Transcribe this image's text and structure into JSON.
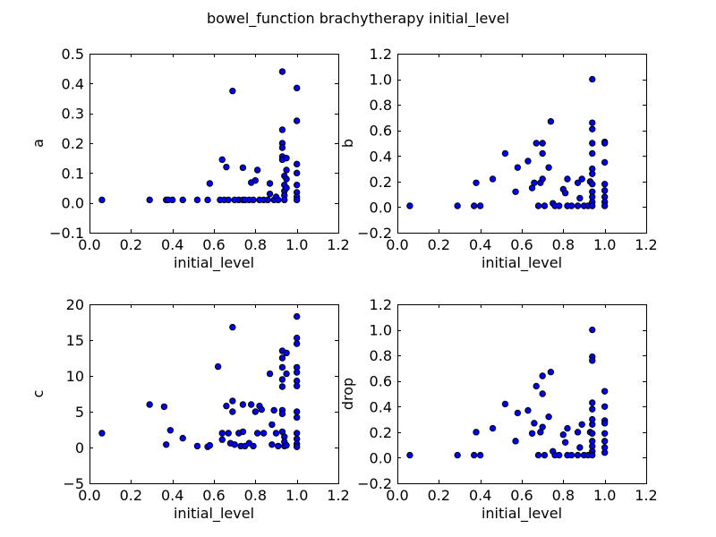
{
  "figure": {
    "title": "bowel_function brachytherapy initial_level"
  },
  "chart_data": [
    {
      "type": "scatter",
      "id": "a",
      "xlabel": "initial_level",
      "ylabel": "a",
      "xlim": [
        0.0,
        1.2
      ],
      "ylim": [
        -0.1,
        0.5
      ],
      "xticks": [
        0.0,
        0.2,
        0.4,
        0.6,
        0.8,
        1.0,
        1.2
      ],
      "yticks": [
        -0.1,
        0.0,
        0.1,
        0.2,
        0.3,
        0.4,
        0.5
      ],
      "xtick_labels": [
        "0.0",
        "0.2",
        "0.4",
        "0.6",
        "0.8",
        "1.0",
        "1.2"
      ],
      "ytick_labels": [
        "−0.1",
        "0.0",
        "0.1",
        "0.2",
        "0.3",
        "0.4",
        "0.5"
      ],
      "points": [
        [
          0.06,
          0.01
        ],
        [
          0.29,
          0.01
        ],
        [
          0.37,
          0.01
        ],
        [
          0.38,
          0.01
        ],
        [
          0.4,
          0.01
        ],
        [
          0.45,
          0.01
        ],
        [
          0.52,
          0.01
        ],
        [
          0.57,
          0.01
        ],
        [
          0.58,
          0.065
        ],
        [
          0.63,
          0.01
        ],
        [
          0.64,
          0.145
        ],
        [
          0.65,
          0.01
        ],
        [
          0.66,
          0.12
        ],
        [
          0.67,
          0.01
        ],
        [
          0.69,
          0.375
        ],
        [
          0.7,
          0.01
        ],
        [
          0.72,
          0.01
        ],
        [
          0.74,
          0.01
        ],
        [
          0.74,
          0.118
        ],
        [
          0.75,
          0.01
        ],
        [
          0.77,
          0.01
        ],
        [
          0.78,
          0.068
        ],
        [
          0.79,
          0.01
        ],
        [
          0.8,
          0.075
        ],
        [
          0.81,
          0.11
        ],
        [
          0.82,
          0.01
        ],
        [
          0.84,
          0.01
        ],
        [
          0.86,
          0.01
        ],
        [
          0.87,
          0.065
        ],
        [
          0.87,
          0.03
        ],
        [
          0.89,
          0.01
        ],
        [
          0.9,
          0.02
        ],
        [
          0.91,
          0.01
        ],
        [
          0.93,
          0.44
        ],
        [
          0.93,
          0.245
        ],
        [
          0.93,
          0.2
        ],
        [
          0.93,
          0.185
        ],
        [
          0.93,
          0.155
        ],
        [
          0.93,
          0.145
        ],
        [
          0.94,
          0.09
        ],
        [
          0.94,
          0.06
        ],
        [
          0.94,
          0.04
        ],
        [
          0.94,
          0.025
        ],
        [
          0.94,
          0.01
        ],
        [
          0.95,
          0.15
        ],
        [
          0.95,
          0.11
        ],
        [
          0.95,
          0.08
        ],
        [
          0.95,
          0.05
        ],
        [
          1.0,
          0.385
        ],
        [
          1.0,
          0.275
        ],
        [
          1.0,
          0.13
        ],
        [
          1.0,
          0.1
        ],
        [
          1.0,
          0.06
        ],
        [
          1.0,
          0.035
        ],
        [
          1.0,
          0.02
        ],
        [
          1.0,
          0.01
        ]
      ]
    },
    {
      "type": "scatter",
      "id": "b",
      "xlabel": "initial_level",
      "ylabel": "b",
      "xlim": [
        0.0,
        1.2
      ],
      "ylim": [
        -0.2,
        1.2
      ],
      "xticks": [
        0.0,
        0.2,
        0.4,
        0.6,
        0.8,
        1.0,
        1.2
      ],
      "yticks": [
        -0.2,
        0.0,
        0.2,
        0.4,
        0.6,
        0.8,
        1.0,
        1.2
      ],
      "xtick_labels": [
        "0.0",
        "0.2",
        "0.4",
        "0.6",
        "0.8",
        "1.0",
        "1.2"
      ],
      "ytick_labels": [
        "−0.2",
        "0.0",
        "0.2",
        "0.4",
        "0.6",
        "0.8",
        "1.0",
        "1.2"
      ],
      "points": [
        [
          0.06,
          0.01
        ],
        [
          0.29,
          0.01
        ],
        [
          0.37,
          0.01
        ],
        [
          0.38,
          0.19
        ],
        [
          0.4,
          0.01
        ],
        [
          0.46,
          0.22
        ],
        [
          0.52,
          0.42
        ],
        [
          0.57,
          0.12
        ],
        [
          0.58,
          0.31
        ],
        [
          0.63,
          0.36
        ],
        [
          0.65,
          0.15
        ],
        [
          0.66,
          0.19
        ],
        [
          0.67,
          0.5
        ],
        [
          0.68,
          0.01
        ],
        [
          0.69,
          0.19
        ],
        [
          0.7,
          0.5
        ],
        [
          0.7,
          0.42
        ],
        [
          0.7,
          0.22
        ],
        [
          0.71,
          0.01
        ],
        [
          0.73,
          0.31
        ],
        [
          0.74,
          0.67
        ],
        [
          0.75,
          0.03
        ],
        [
          0.76,
          0.01
        ],
        [
          0.78,
          0.01
        ],
        [
          0.8,
          0.14
        ],
        [
          0.81,
          0.11
        ],
        [
          0.82,
          0.22
        ],
        [
          0.82,
          0.01
        ],
        [
          0.84,
          0.01
        ],
        [
          0.87,
          0.01
        ],
        [
          0.87,
          0.19
        ],
        [
          0.88,
          0.07
        ],
        [
          0.89,
          0.22
        ],
        [
          0.9,
          0.01
        ],
        [
          0.92,
          0.01
        ],
        [
          0.93,
          0.2
        ],
        [
          0.94,
          1.0
        ],
        [
          0.94,
          0.66
        ],
        [
          0.94,
          0.61
        ],
        [
          0.94,
          0.5
        ],
        [
          0.94,
          0.42
        ],
        [
          0.94,
          0.3
        ],
        [
          0.94,
          0.26
        ],
        [
          0.94,
          0.18
        ],
        [
          0.94,
          0.12
        ],
        [
          0.94,
          0.08
        ],
        [
          0.94,
          0.04
        ],
        [
          0.94,
          0.01
        ],
        [
          1.0,
          0.51
        ],
        [
          1.0,
          0.5
        ],
        [
          1.0,
          0.35
        ],
        [
          1.0,
          0.18
        ],
        [
          1.0,
          0.13
        ],
        [
          1.0,
          0.08
        ],
        [
          1.0,
          0.04
        ],
        [
          1.0,
          0.01
        ]
      ]
    },
    {
      "type": "scatter",
      "id": "c",
      "xlabel": "initial_level",
      "ylabel": "c",
      "xlim": [
        0.0,
        1.2
      ],
      "ylim": [
        -5,
        20
      ],
      "xticks": [
        0.0,
        0.2,
        0.4,
        0.6,
        0.8,
        1.0,
        1.2
      ],
      "yticks": [
        -5,
        0,
        5,
        10,
        15,
        20
      ],
      "xtick_labels": [
        "0.0",
        "0.2",
        "0.4",
        "0.6",
        "0.8",
        "1.0",
        "1.2"
      ],
      "ytick_labels": [
        "−5",
        "0",
        "5",
        "10",
        "15",
        "20"
      ],
      "points": [
        [
          0.06,
          2.0
        ],
        [
          0.29,
          6.0
        ],
        [
          0.36,
          5.7
        ],
        [
          0.37,
          0.4
        ],
        [
          0.39,
          2.4
        ],
        [
          0.45,
          1.3
        ],
        [
          0.52,
          0.2
        ],
        [
          0.57,
          0.1
        ],
        [
          0.58,
          0.3
        ],
        [
          0.62,
          11.3
        ],
        [
          0.64,
          2.0
        ],
        [
          0.64,
          1.1
        ],
        [
          0.66,
          5.8
        ],
        [
          0.67,
          2.0
        ],
        [
          0.68,
          0.6
        ],
        [
          0.69,
          16.8
        ],
        [
          0.69,
          6.5
        ],
        [
          0.69,
          5.0
        ],
        [
          0.7,
          0.4
        ],
        [
          0.72,
          2.0
        ],
        [
          0.73,
          0.2
        ],
        [
          0.74,
          6.0
        ],
        [
          0.74,
          2.2
        ],
        [
          0.75,
          0.2
        ],
        [
          0.77,
          0.6
        ],
        [
          0.78,
          6.0
        ],
        [
          0.79,
          0.2
        ],
        [
          0.8,
          5.0
        ],
        [
          0.81,
          2.0
        ],
        [
          0.82,
          5.8
        ],
        [
          0.83,
          5.3
        ],
        [
          0.84,
          2.0
        ],
        [
          0.87,
          10.3
        ],
        [
          0.88,
          3.2
        ],
        [
          0.88,
          0.4
        ],
        [
          0.89,
          5.2
        ],
        [
          0.9,
          2.0
        ],
        [
          0.91,
          0.2
        ],
        [
          0.93,
          13.5
        ],
        [
          0.93,
          12.5
        ],
        [
          0.93,
          11.2
        ],
        [
          0.93,
          9.5
        ],
        [
          0.93,
          8.5
        ],
        [
          0.93,
          5.2
        ],
        [
          0.93,
          4.7
        ],
        [
          0.93,
          2.2
        ],
        [
          0.94,
          1.5
        ],
        [
          0.94,
          0.8
        ],
        [
          0.94,
          0.2
        ],
        [
          0.95,
          13.2
        ],
        [
          0.95,
          10.3
        ],
        [
          0.95,
          0.3
        ],
        [
          1.0,
          18.3
        ],
        [
          1.0,
          15.3
        ],
        [
          1.0,
          14.5
        ],
        [
          1.0,
          11.2
        ],
        [
          1.0,
          10.5
        ],
        [
          1.0,
          9.3
        ],
        [
          1.0,
          8.6
        ],
        [
          1.0,
          5.0
        ],
        [
          1.0,
          4.2
        ],
        [
          1.0,
          2.0
        ],
        [
          1.0,
          1.2
        ],
        [
          1.0,
          0.5
        ],
        [
          1.0,
          0.1
        ]
      ]
    },
    {
      "type": "scatter",
      "id": "drop",
      "xlabel": "initial_level",
      "ylabel": "drop",
      "xlim": [
        0.0,
        1.2
      ],
      "ylim": [
        -0.2,
        1.2
      ],
      "xticks": [
        0.0,
        0.2,
        0.4,
        0.6,
        0.8,
        1.0,
        1.2
      ],
      "yticks": [
        -0.2,
        0.0,
        0.2,
        0.4,
        0.6,
        0.8,
        1.0,
        1.2
      ],
      "xtick_labels": [
        "0.0",
        "0.2",
        "0.4",
        "0.6",
        "0.8",
        "1.0",
        "1.2"
      ],
      "ytick_labels": [
        "−0.2",
        "0.0",
        "0.2",
        "0.4",
        "0.6",
        "0.8",
        "1.0",
        "1.2"
      ],
      "points": [
        [
          0.06,
          0.02
        ],
        [
          0.29,
          0.02
        ],
        [
          0.37,
          0.02
        ],
        [
          0.38,
          0.2
        ],
        [
          0.4,
          0.02
        ],
        [
          0.46,
          0.23
        ],
        [
          0.52,
          0.42
        ],
        [
          0.57,
          0.13
        ],
        [
          0.58,
          0.35
        ],
        [
          0.63,
          0.37
        ],
        [
          0.65,
          0.19
        ],
        [
          0.66,
          0.27
        ],
        [
          0.67,
          0.56
        ],
        [
          0.68,
          0.02
        ],
        [
          0.69,
          0.2
        ],
        [
          0.7,
          0.64
        ],
        [
          0.7,
          0.5
        ],
        [
          0.7,
          0.24
        ],
        [
          0.71,
          0.02
        ],
        [
          0.73,
          0.32
        ],
        [
          0.74,
          0.67
        ],
        [
          0.75,
          0.05
        ],
        [
          0.76,
          0.02
        ],
        [
          0.78,
          0.02
        ],
        [
          0.8,
          0.18
        ],
        [
          0.81,
          0.12
        ],
        [
          0.82,
          0.23
        ],
        [
          0.82,
          0.02
        ],
        [
          0.84,
          0.02
        ],
        [
          0.87,
          0.02
        ],
        [
          0.87,
          0.2
        ],
        [
          0.88,
          0.08
        ],
        [
          0.89,
          0.26
        ],
        [
          0.9,
          0.02
        ],
        [
          0.92,
          0.02
        ],
        [
          0.93,
          0.2
        ],
        [
          0.94,
          1.0
        ],
        [
          0.94,
          0.79
        ],
        [
          0.94,
          0.76
        ],
        [
          0.94,
          0.43
        ],
        [
          0.94,
          0.38
        ],
        [
          0.94,
          0.3
        ],
        [
          0.94,
          0.26
        ],
        [
          0.94,
          0.19
        ],
        [
          0.94,
          0.13
        ],
        [
          0.94,
          0.09
        ],
        [
          0.94,
          0.05
        ],
        [
          0.94,
          0.02
        ],
        [
          1.0,
          0.52
        ],
        [
          1.0,
          0.4
        ],
        [
          1.0,
          0.29
        ],
        [
          1.0,
          0.27
        ],
        [
          1.0,
          0.19
        ],
        [
          1.0,
          0.13
        ],
        [
          1.0,
          0.08
        ],
        [
          1.0,
          0.04
        ]
      ]
    }
  ]
}
